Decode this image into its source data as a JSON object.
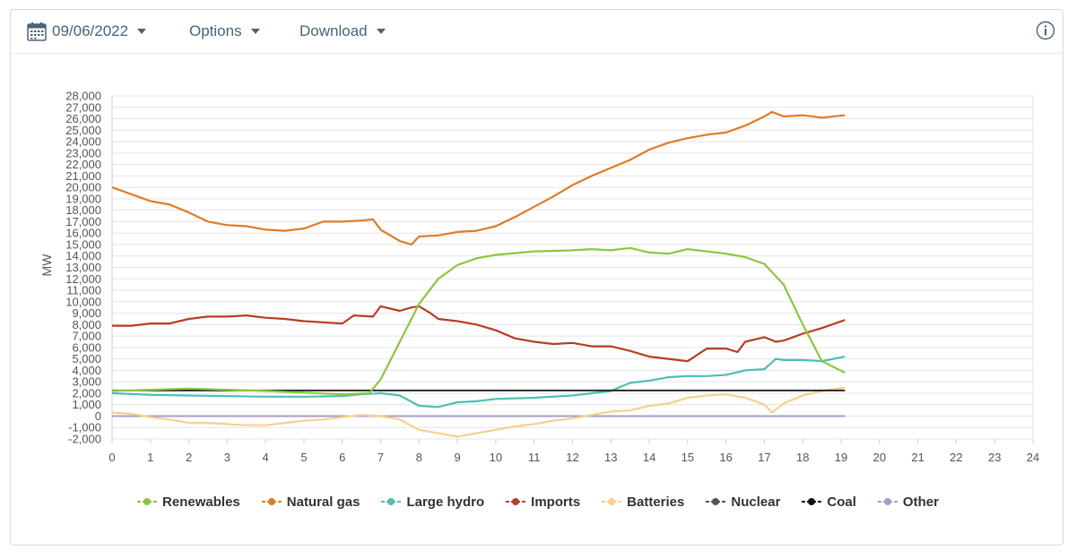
{
  "toolbar": {
    "date": "09/06/2022",
    "options_label": "Options",
    "download_label": "Download"
  },
  "icons": {
    "calendar": "calendar-icon",
    "info": "info-icon",
    "dropdown": "chevron-down-icon"
  },
  "chart_data": {
    "type": "line",
    "title": "",
    "xlabel": "",
    "ylabel": "MW",
    "xlim": [
      0,
      24
    ],
    "ylim": [
      -2000,
      28000
    ],
    "x_ticks": [
      "0",
      "1",
      "2",
      "3",
      "4",
      "5",
      "6",
      "7",
      "8",
      "9",
      "10",
      "11",
      "12",
      "13",
      "14",
      "15",
      "16",
      "17",
      "18",
      "19",
      "20",
      "21",
      "22",
      "23",
      "24"
    ],
    "y_ticks": [
      "28,000",
      "27,000",
      "26,000",
      "25,000",
      "24,000",
      "23,000",
      "22,000",
      "21,000",
      "20,000",
      "19,000",
      "18,000",
      "17,000",
      "16,000",
      "15,000",
      "14,000",
      "13,000",
      "12,000",
      "11,000",
      "10,000",
      "9,000",
      "8,000",
      "7,000",
      "6,000",
      "5,000",
      "4,000",
      "3,000",
      "2,000",
      "1,000",
      "0",
      "-1,000",
      "-2,000"
    ],
    "y_tick_values": [
      28000,
      27000,
      26000,
      25000,
      24000,
      23000,
      22000,
      21000,
      20000,
      19000,
      18000,
      17000,
      16000,
      15000,
      14000,
      13000,
      12000,
      11000,
      10000,
      9000,
      8000,
      7000,
      6000,
      5000,
      4000,
      3000,
      2000,
      1000,
      0,
      -1000,
      -2000
    ],
    "grid": true,
    "legend_position": "bottom",
    "series": [
      {
        "name": "Renewables",
        "color": "#8cc63f",
        "x": [
          0,
          1,
          2,
          3,
          4,
          5,
          6,
          6.7,
          7,
          7.5,
          8,
          8.5,
          9,
          9.5,
          10,
          11,
          12,
          12.5,
          13,
          13.5,
          14,
          14.5,
          15,
          15.5,
          16,
          16.5,
          17,
          17.5,
          18,
          18.5,
          19.1
        ],
        "y": [
          2200,
          2300,
          2400,
          2300,
          2200,
          2050,
          1900,
          2000,
          3200,
          6500,
          9800,
          12000,
          13200,
          13800,
          14100,
          14400,
          14500,
          14600,
          14500,
          14700,
          14300,
          14200,
          14600,
          14400,
          14200,
          13900,
          13300,
          11500,
          8000,
          4800,
          3800
        ]
      },
      {
        "name": "Natural gas",
        "color": "#e07b24",
        "x": [
          0,
          0.5,
          1,
          1.5,
          2,
          2.5,
          3,
          3.5,
          4,
          4.5,
          5,
          5.5,
          6,
          6.5,
          6.8,
          7,
          7.5,
          7.8,
          8,
          8.5,
          9,
          9.5,
          10,
          10.5,
          11,
          11.5,
          12,
          12.5,
          13,
          13.5,
          14,
          14.5,
          15,
          15.5,
          16,
          16.5,
          17,
          17.2,
          17.5,
          18,
          18.5,
          19.1
        ],
        "y": [
          20000,
          19400,
          18800,
          18500,
          17800,
          17000,
          16700,
          16600,
          16300,
          16200,
          16400,
          17000,
          17000,
          17100,
          17200,
          16300,
          15300,
          15000,
          15700,
          15800,
          16100,
          16200,
          16600,
          17400,
          18300,
          19200,
          20200,
          21000,
          21700,
          22400,
          23300,
          23900,
          24300,
          24600,
          24800,
          25400,
          26200,
          26600,
          26200,
          26300,
          26100,
          26300
        ]
      },
      {
        "name": "Large hydro",
        "color": "#4fbfb3",
        "x": [
          0,
          1,
          2,
          3,
          4,
          5,
          6,
          6.5,
          7,
          7.5,
          8,
          8.5,
          9,
          9.5,
          10,
          11,
          12,
          13,
          13.5,
          14,
          14.5,
          15,
          15.5,
          16,
          16.5,
          17,
          17.3,
          17.5,
          18,
          18.5,
          19.1
        ],
        "y": [
          2000,
          1850,
          1800,
          1750,
          1700,
          1700,
          1750,
          1900,
          2000,
          1800,
          900,
          800,
          1200,
          1300,
          1500,
          1600,
          1800,
          2200,
          2900,
          3100,
          3400,
          3500,
          3500,
          3600,
          4000,
          4100,
          5000,
          4900,
          4900,
          4800,
          5200
        ]
      },
      {
        "name": "Imports",
        "color": "#b63e24",
        "x": [
          0,
          0.5,
          1,
          1.5,
          2,
          2.5,
          3,
          3.5,
          4,
          4.5,
          5,
          5.5,
          6,
          6.3,
          6.8,
          7,
          7.5,
          7.8,
          8,
          8.3,
          8.5,
          9,
          9.5,
          10,
          10.5,
          11,
          11.5,
          12,
          12.5,
          13,
          13.5,
          14,
          14.5,
          15,
          15.5,
          16,
          16.3,
          16.5,
          17,
          17.3,
          17.5,
          18,
          18.5,
          19.1
        ],
        "y": [
          7900,
          7900,
          8100,
          8100,
          8500,
          8700,
          8700,
          8800,
          8600,
          8500,
          8300,
          8200,
          8100,
          8800,
          8700,
          9600,
          9200,
          9500,
          9600,
          9000,
          8500,
          8300,
          8000,
          7500,
          6800,
          6500,
          6300,
          6400,
          6100,
          6100,
          5700,
          5200,
          5000,
          4800,
          5900,
          5900,
          5600,
          6500,
          6900,
          6500,
          6600,
          7200,
          7700,
          8400
        ]
      },
      {
        "name": "Batteries",
        "color": "#f6d08c",
        "x": [
          0,
          0.5,
          1,
          1.5,
          2,
          2.5,
          3,
          3.5,
          4,
          4.5,
          5,
          5.5,
          6,
          6.5,
          7,
          7.5,
          8,
          8.5,
          9,
          9.5,
          10,
          10.5,
          11,
          11.5,
          12,
          12.5,
          13,
          13.5,
          14,
          14.5,
          15,
          15.5,
          16,
          16.5,
          17,
          17.2,
          17.5,
          18,
          18.5,
          19.1
        ],
        "y": [
          300,
          200,
          -100,
          -300,
          -600,
          -600,
          -700,
          -800,
          -800,
          -600,
          -400,
          -300,
          -100,
          100,
          0,
          -300,
          -1200,
          -1500,
          -1800,
          -1500,
          -1200,
          -900,
          -700,
          -400,
          -200,
          100,
          400,
          500,
          900,
          1100,
          1600,
          1800,
          1900,
          1600,
          1000,
          300,
          1100,
          1800,
          2200,
          2500
        ]
      },
      {
        "name": "Nuclear",
        "color": "#555555",
        "x": [
          0,
          19.1
        ],
        "y": [
          2250,
          2250
        ]
      },
      {
        "name": "Coal",
        "color": "#111111",
        "x": [
          0,
          19.1
        ],
        "y": [
          2230,
          2230
        ]
      },
      {
        "name": "Other",
        "color": "#a99bc6",
        "x": [
          0,
          19.1
        ],
        "y": [
          0,
          0
        ]
      }
    ]
  }
}
